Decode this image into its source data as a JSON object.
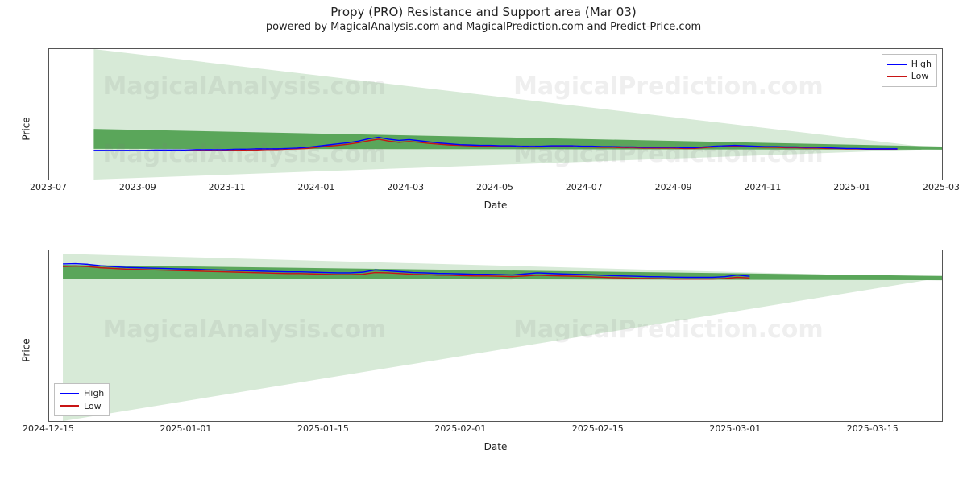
{
  "title": "Propy (PRO) Resistance and Support area (Mar 03)",
  "subtitle": "powered by MagicalAnalysis.com and MagicalPrediction.com and Predict-Price.com",
  "watermarks": [
    "MagicalAnalysis.com",
    "MagicalPrediction.com"
  ],
  "legend": {
    "high": "High",
    "low": "Low"
  },
  "colors": {
    "high_line": "#0000ff",
    "low_line": "#c81414",
    "band_outer": "#d7ead7",
    "band_inner": "#5aa65a",
    "axis": "#555555",
    "text": "#222222",
    "legend_border": "#bfbfbf",
    "background": "#ffffff"
  },
  "axis_labels": {
    "x": "Date",
    "y": "Price"
  },
  "top_chart": {
    "type": "line",
    "ylim": [
      -7,
      27
    ],
    "yticks": [
      0,
      10,
      20
    ],
    "xticks": [
      "2023-07",
      "2023-09",
      "2023-11",
      "2024-01",
      "2024-03",
      "2024-05",
      "2024-07",
      "2024-09",
      "2024-11",
      "2025-01",
      "2025-03"
    ],
    "xdomain": [
      0,
      10
    ],
    "series_x_start": 0.5,
    "series_x_end": 9.5,
    "outer_band": {
      "x": [
        0.5,
        10
      ],
      "upper": [
        27,
        1
      ],
      "lower": [
        -7,
        1
      ]
    },
    "inner_band": {
      "x": [
        0.5,
        10
      ],
      "upper": [
        6.2,
        1.6
      ],
      "lower": [
        1.0,
        0.8
      ]
    },
    "high_series": [
      0.6,
      0.6,
      0.6,
      0.6,
      0.6,
      0.6,
      0.7,
      0.7,
      0.7,
      0.7,
      0.8,
      0.8,
      0.8,
      0.8,
      0.9,
      0.9,
      1.0,
      1.0,
      1.0,
      1.1,
      1.2,
      1.4,
      1.7,
      2.0,
      2.3,
      2.6,
      3.0,
      3.6,
      4.0,
      3.5,
      3.2,
      3.4,
      3.1,
      2.8,
      2.5,
      2.3,
      2.1,
      2.0,
      1.9,
      1.9,
      1.8,
      1.8,
      1.7,
      1.7,
      1.7,
      1.8,
      1.8,
      1.8,
      1.7,
      1.7,
      1.6,
      1.6,
      1.5,
      1.5,
      1.4,
      1.4,
      1.4,
      1.4,
      1.3,
      1.3,
      1.5,
      1.7,
      1.8,
      1.9,
      1.8,
      1.7,
      1.6,
      1.6,
      1.5,
      1.5,
      1.4,
      1.4,
      1.3,
      1.2,
      1.1,
      1.1,
      1.0,
      1.0,
      1.0,
      1.0
    ],
    "low_series": [
      0.5,
      0.5,
      0.5,
      0.5,
      0.5,
      0.5,
      0.5,
      0.5,
      0.6,
      0.6,
      0.6,
      0.6,
      0.6,
      0.6,
      0.7,
      0.7,
      0.7,
      0.8,
      0.8,
      0.9,
      1.0,
      1.1,
      1.4,
      1.7,
      1.9,
      2.2,
      2.6,
      3.1,
      3.5,
      3.0,
      2.7,
      2.9,
      2.7,
      2.4,
      2.2,
      2.0,
      1.9,
      1.8,
      1.7,
      1.7,
      1.6,
      1.6,
      1.5,
      1.5,
      1.5,
      1.6,
      1.6,
      1.6,
      1.5,
      1.5,
      1.4,
      1.4,
      1.3,
      1.3,
      1.2,
      1.2,
      1.2,
      1.2,
      1.1,
      1.1,
      1.3,
      1.5,
      1.6,
      1.7,
      1.6,
      1.5,
      1.4,
      1.4,
      1.3,
      1.3,
      1.2,
      1.2,
      1.1,
      1.1,
      1.0,
      1.0,
      0.9,
      0.9,
      0.9,
      0.9
    ],
    "legend_pos": "top-right",
    "line_width": 1.4,
    "title_fontsize": 15,
    "label_fontsize": 12
  },
  "bottom_chart": {
    "type": "line",
    "ylim": [
      -7.5,
      2.5
    ],
    "yticks": [
      -6,
      -4,
      -2,
      0,
      2
    ],
    "xticks": [
      "2024-12-15",
      "2025-01-01",
      "2025-01-15",
      "2025-02-01",
      "2025-02-15",
      "2025-03-01",
      "2025-03-15"
    ],
    "xdomain": [
      0,
      6.5
    ],
    "series_x_start": 0.1,
    "series_x_end": 5.1,
    "outer_band": {
      "x": [
        0.1,
        6.5
      ],
      "upper": [
        2.3,
        0.9
      ],
      "lower": [
        -7.5,
        0.9
      ]
    },
    "inner_band": {
      "x": [
        0.1,
        6.5
      ],
      "upper": [
        1.65,
        1.0
      ],
      "lower": [
        0.85,
        0.75
      ]
    },
    "high_series": [
      1.7,
      1.72,
      1.68,
      1.6,
      1.55,
      1.5,
      1.48,
      1.46,
      1.44,
      1.42,
      1.4,
      1.38,
      1.36,
      1.34,
      1.32,
      1.3,
      1.28,
      1.26,
      1.24,
      1.24,
      1.22,
      1.2,
      1.18,
      1.18,
      1.22,
      1.35,
      1.3,
      1.25,
      1.2,
      1.18,
      1.15,
      1.14,
      1.12,
      1.1,
      1.1,
      1.08,
      1.06,
      1.12,
      1.18,
      1.15,
      1.12,
      1.1,
      1.08,
      1.05,
      1.02,
      1.0,
      0.98,
      0.96,
      0.95,
      0.93,
      0.92,
      0.92,
      0.92,
      0.96,
      1.05,
      0.98
    ],
    "low_series": [
      1.55,
      1.58,
      1.55,
      1.48,
      1.44,
      1.4,
      1.38,
      1.36,
      1.34,
      1.32,
      1.3,
      1.28,
      1.26,
      1.24,
      1.22,
      1.2,
      1.18,
      1.16,
      1.14,
      1.14,
      1.12,
      1.1,
      1.08,
      1.08,
      1.1,
      1.2,
      1.18,
      1.14,
      1.1,
      1.08,
      1.05,
      1.04,
      1.02,
      1.0,
      1.0,
      0.98,
      0.96,
      1.0,
      1.05,
      1.02,
      1.0,
      0.98,
      0.96,
      0.93,
      0.9,
      0.88,
      0.86,
      0.85,
      0.84,
      0.82,
      0.82,
      0.82,
      0.82,
      0.85,
      0.92,
      0.88
    ],
    "legend_pos": "bottom-left",
    "line_width": 1.4,
    "label_fontsize": 12
  }
}
